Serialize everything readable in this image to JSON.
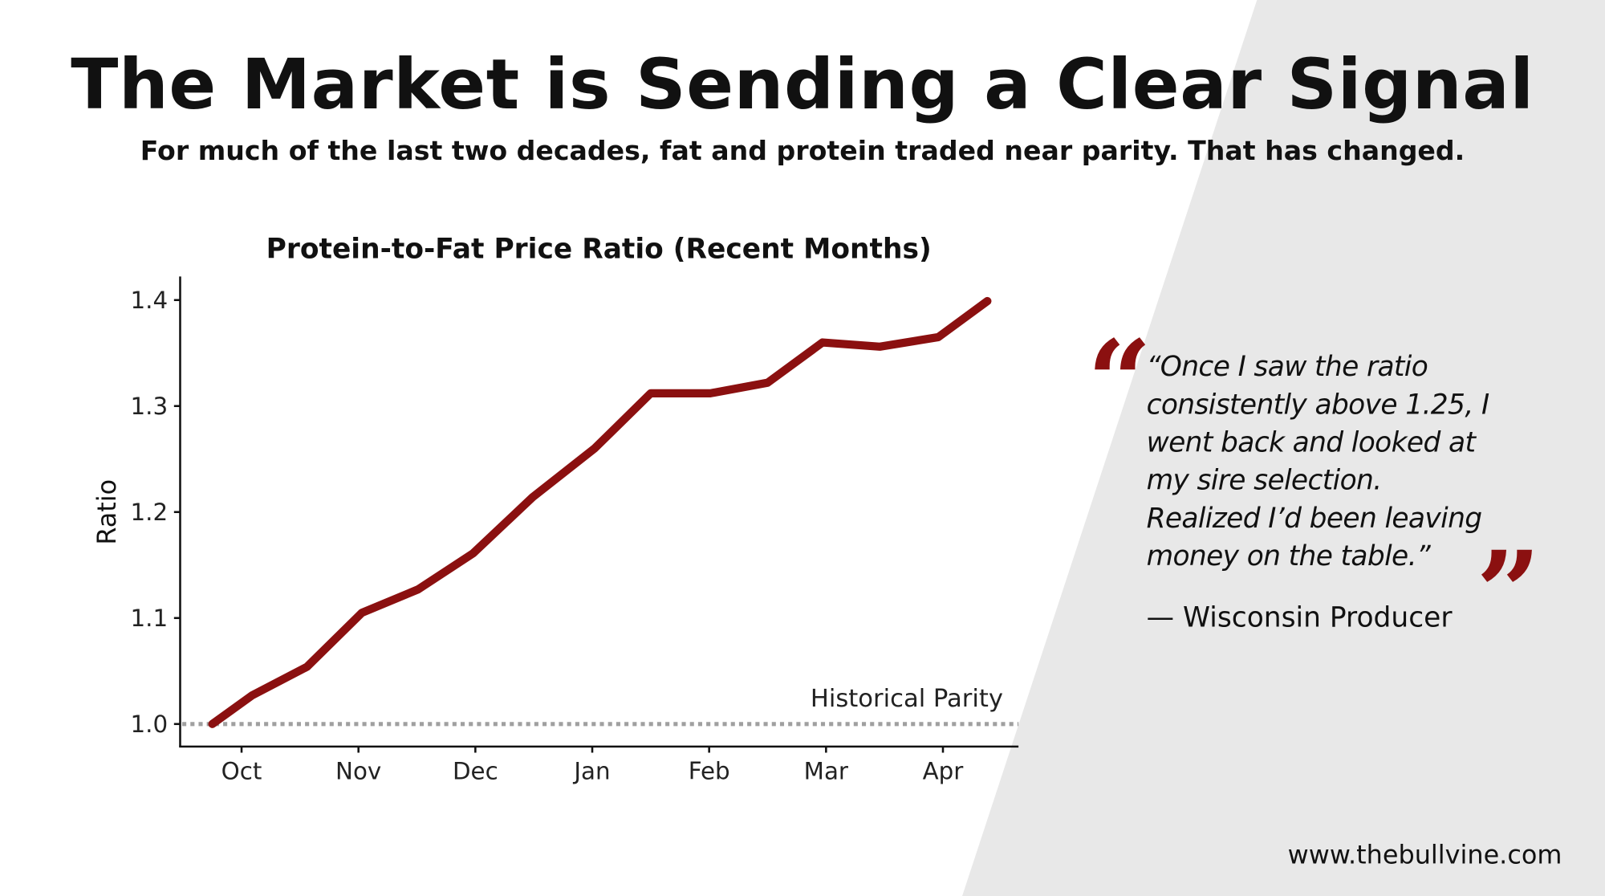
{
  "header": {
    "title": "The Market is Sending a Clear Signal",
    "subtitle": "For much of the last two decades, fat and protein traded near parity. That has changed."
  },
  "chart_data": {
    "type": "line",
    "title": "Protein-to-Fat Price Ratio (Recent Months)",
    "xlabel": "",
    "ylabel": "Ratio",
    "x_tick_labels": [
      "Oct",
      "Nov",
      "Dec",
      "Jan",
      "Feb",
      "Mar",
      "Apr"
    ],
    "y_tick_labels": [
      "1.0",
      "1.1",
      "1.2",
      "1.3",
      "1.4"
    ],
    "y_ticks": [
      1.0,
      1.1,
      1.2,
      1.3,
      1.4
    ],
    "ylim": [
      0.98,
      1.42
    ],
    "xlim": [
      -0.52,
      6.7
    ],
    "grid": false,
    "series": [
      {
        "name": "Protein-to-Fat Price Ratio",
        "color": "#8b1010",
        "x": [
          -0.25,
          0.09,
          0.56,
          1.03,
          1.51,
          1.98,
          2.49,
          3.02,
          3.5,
          4.01,
          4.5,
          4.97,
          5.46,
          5.96,
          6.38
        ],
        "y": [
          1.0,
          1.027,
          1.054,
          1.105,
          1.127,
          1.161,
          1.214,
          1.26,
          1.312,
          1.312,
          1.322,
          1.36,
          1.356,
          1.365,
          1.399
        ]
      }
    ],
    "reference_line": {
      "y": 1.0,
      "label": "Historical Parity",
      "color": "#a0a0a0",
      "style": "dotted"
    }
  },
  "quote": {
    "lines": [
      "“Once I saw the ratio",
      "consistently above 1.25, I",
      "went back and looked at",
      "my sire selection.",
      "Realized I’d been leaving",
      "money on the table.”"
    ],
    "attribution": "— Wisconsin Producer",
    "accent_color": "#8b1010"
  },
  "footer": {
    "url": "www.thebullvine.com"
  }
}
